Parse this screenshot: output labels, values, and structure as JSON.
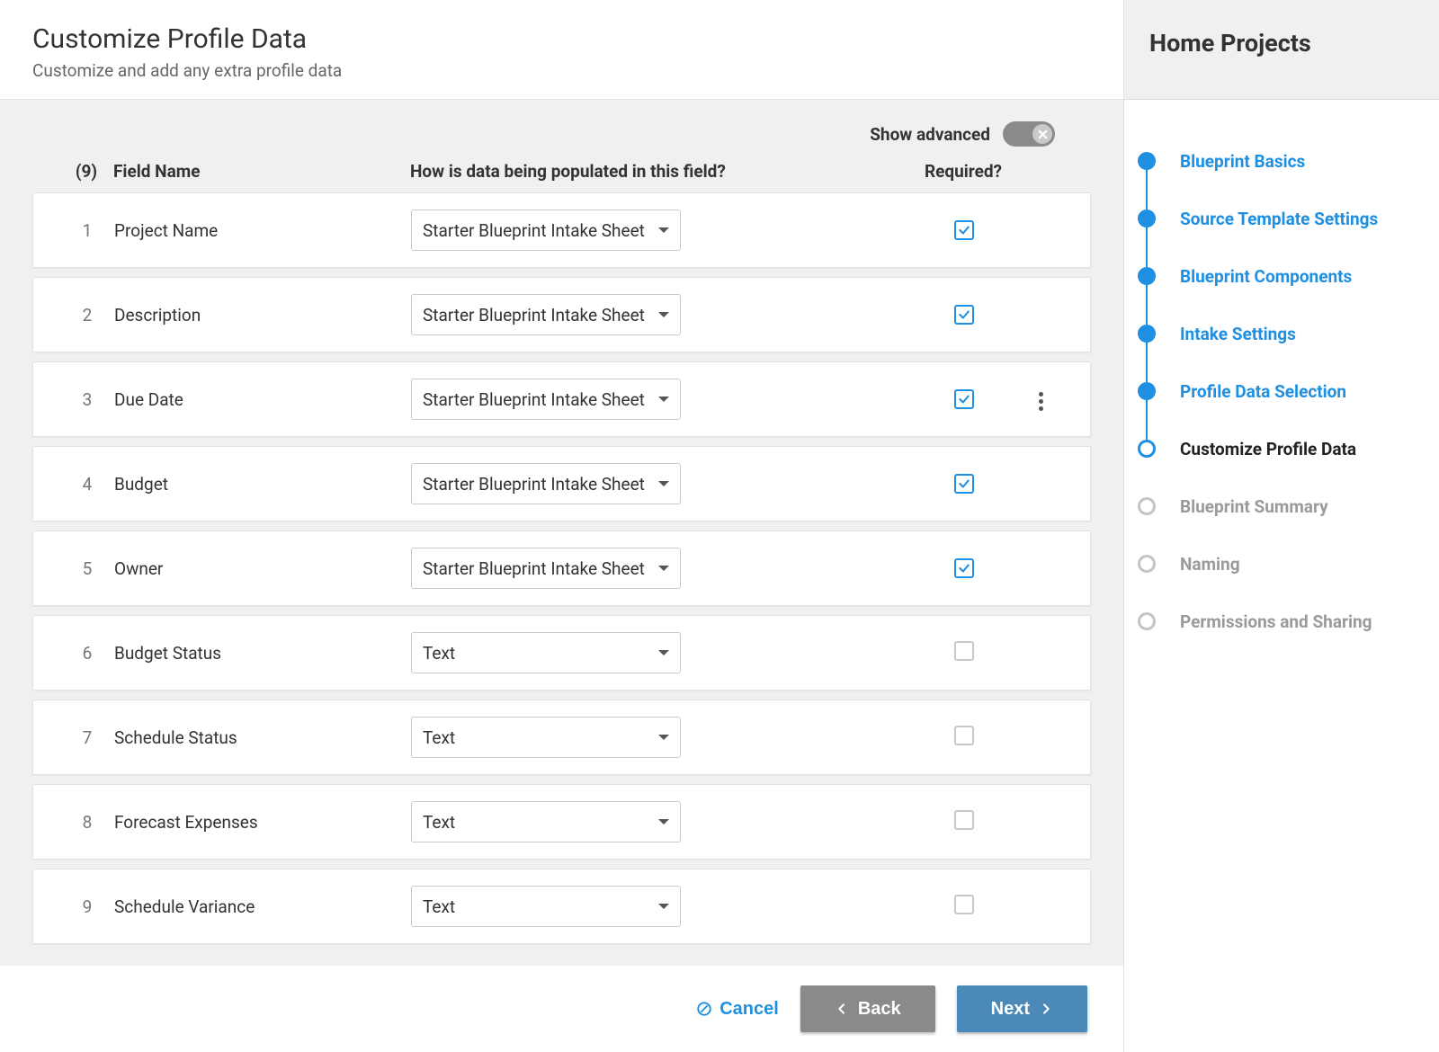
{
  "header": {
    "title": "Customize Profile Data",
    "subtitle": "Customize and add any extra profile data"
  },
  "toolbar": {
    "show_advanced_label": "Show advanced",
    "show_advanced_on": false
  },
  "columns": {
    "count_label": "(9)",
    "field_name": "Field Name",
    "population": "How is data being populated in this field?",
    "required": "Required?"
  },
  "rows": [
    {
      "num": "1",
      "name": "Project Name",
      "pop": "Starter Blueprint Intake Sheet",
      "required": true,
      "menu": false
    },
    {
      "num": "2",
      "name": "Description",
      "pop": "Starter Blueprint Intake Sheet",
      "required": true,
      "menu": false
    },
    {
      "num": "3",
      "name": "Due Date",
      "pop": "Starter Blueprint Intake Sheet",
      "required": true,
      "menu": true
    },
    {
      "num": "4",
      "name": "Budget",
      "pop": "Starter Blueprint Intake Sheet",
      "required": true,
      "menu": false
    },
    {
      "num": "5",
      "name": "Owner",
      "pop": "Starter Blueprint Intake Sheet",
      "required": true,
      "menu": false
    },
    {
      "num": "6",
      "name": "Budget Status",
      "pop": "Text",
      "required": false,
      "menu": false
    },
    {
      "num": "7",
      "name": "Schedule Status",
      "pop": "Text",
      "required": false,
      "menu": false
    },
    {
      "num": "8",
      "name": "Forecast Expenses",
      "pop": "Text",
      "required": false,
      "menu": false
    },
    {
      "num": "9",
      "name": "Schedule Variance",
      "pop": "Text",
      "required": false,
      "menu": false
    }
  ],
  "footer": {
    "cancel": "Cancel",
    "back": "Back",
    "next": "Next"
  },
  "sidebar": {
    "title": "Home Projects",
    "steps": [
      {
        "label": "Blueprint Basics",
        "state": "done"
      },
      {
        "label": "Source Template Settings",
        "state": "done"
      },
      {
        "label": "Blueprint Components",
        "state": "done"
      },
      {
        "label": "Intake Settings",
        "state": "done"
      },
      {
        "label": "Profile Data Selection",
        "state": "done"
      },
      {
        "label": "Customize Profile Data",
        "state": "current"
      },
      {
        "label": "Blueprint Summary",
        "state": "future"
      },
      {
        "label": "Naming",
        "state": "future"
      },
      {
        "label": "Permissions and Sharing",
        "state": "future"
      }
    ]
  },
  "colors": {
    "accent": "#1e8fe1",
    "next_button": "#4b89b8",
    "back_button": "#8a8a8a",
    "body_bg": "#f0f0f0",
    "muted_text": "#9a9a9a"
  }
}
